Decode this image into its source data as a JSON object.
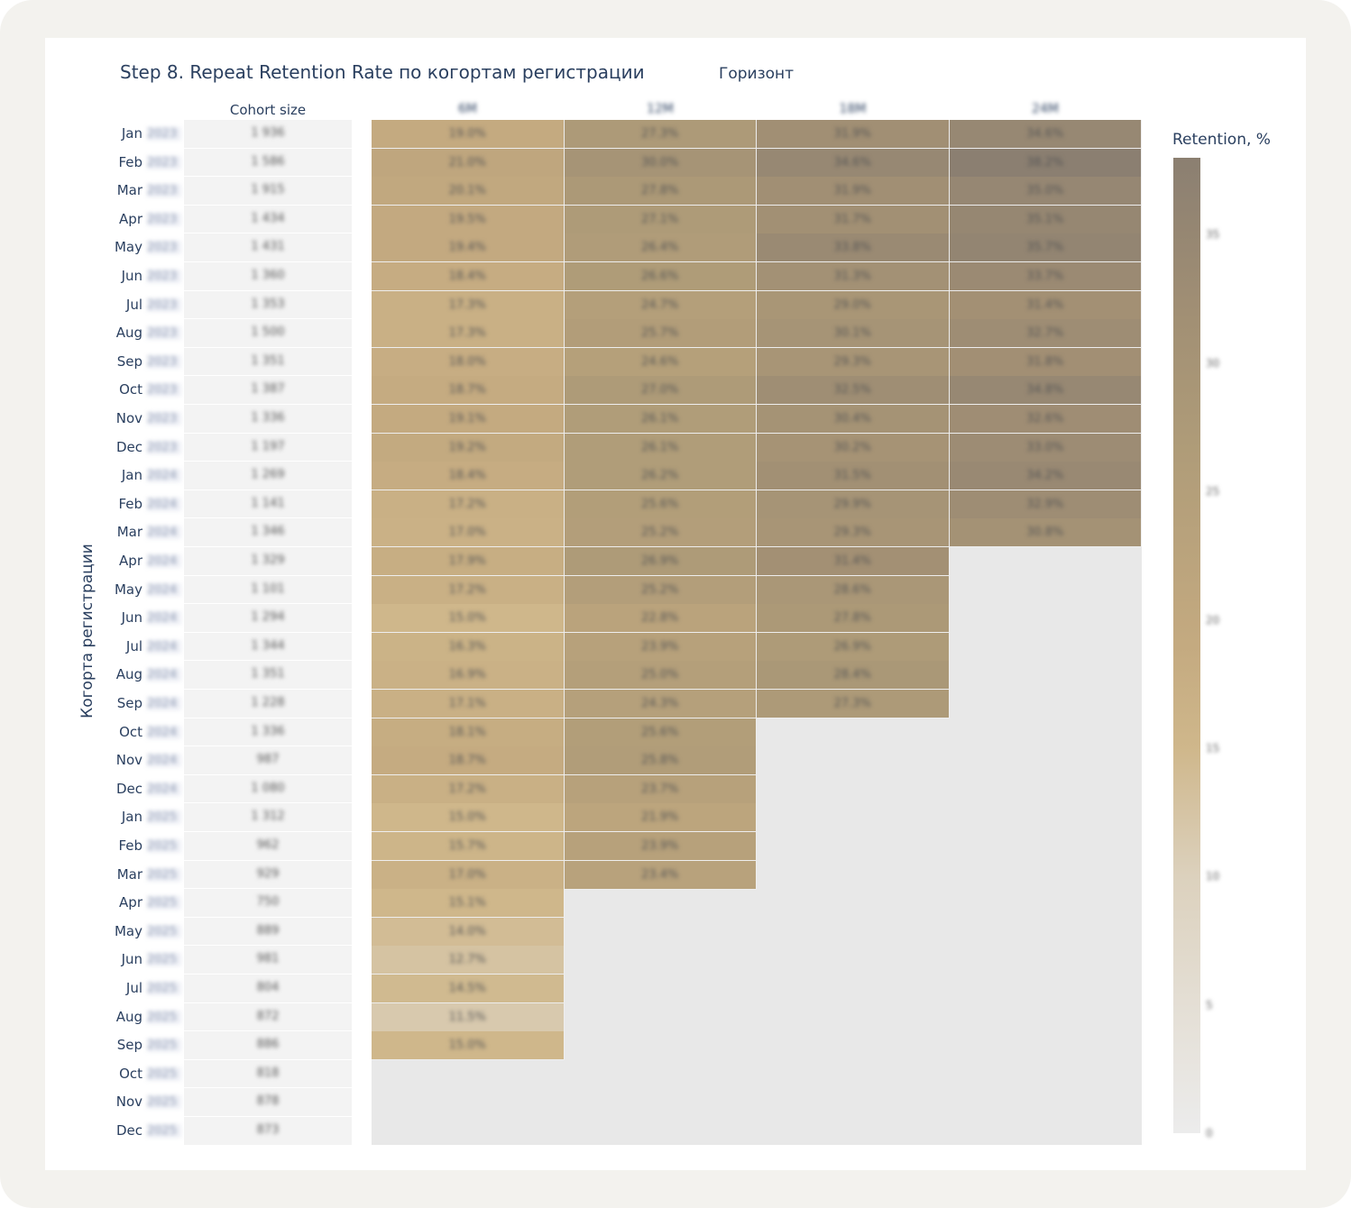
{
  "chart_data": {
    "type": "heatmap",
    "title": "Step 8. Repeat Retention Rate по когортам регистрации",
    "control_label": "Горизонт",
    "ylabel": "Когорта регистрации",
    "size_header": "Cohort size",
    "columns": [
      "6M",
      "12M",
      "18M",
      "24M"
    ],
    "colorbar": {
      "title": "Retention, %",
      "ticks": [
        0,
        5,
        10,
        15,
        20,
        25,
        30,
        35
      ],
      "range": [
        0,
        38
      ]
    },
    "colorscale": [
      [
        0,
        "#ececec"
      ],
      [
        10,
        "#dcd1bd"
      ],
      [
        15,
        "#cfb78b"
      ],
      [
        19,
        "#c4aa80"
      ],
      [
        27,
        "#ae9b78"
      ],
      [
        32,
        "#a18f74"
      ],
      [
        38,
        "#8b7f71"
      ]
    ],
    "rows": [
      {
        "month": "Jan",
        "year": "2023",
        "size": "1 936",
        "values": [
          19.0,
          27.3,
          31.9,
          34.6
        ]
      },
      {
        "month": "Feb",
        "year": "2023",
        "size": "1 586",
        "values": [
          21.0,
          30.0,
          34.6,
          38.2
        ]
      },
      {
        "month": "Mar",
        "year": "2023",
        "size": "1 915",
        "values": [
          20.1,
          27.8,
          31.9,
          35.0
        ]
      },
      {
        "month": "Apr",
        "year": "2023",
        "size": "1 434",
        "values": [
          19.5,
          27.1,
          31.7,
          35.1
        ]
      },
      {
        "month": "May",
        "year": "2023",
        "size": "1 431",
        "values": [
          19.4,
          26.4,
          33.8,
          35.7
        ]
      },
      {
        "month": "Jun",
        "year": "2023",
        "size": "1 360",
        "values": [
          18.4,
          26.6,
          31.3,
          33.7
        ]
      },
      {
        "month": "Jul",
        "year": "2023",
        "size": "1 353",
        "values": [
          17.3,
          24.7,
          29.0,
          31.4
        ]
      },
      {
        "month": "Aug",
        "year": "2023",
        "size": "1 500",
        "values": [
          17.3,
          25.7,
          30.1,
          32.7
        ]
      },
      {
        "month": "Sep",
        "year": "2023",
        "size": "1 351",
        "values": [
          18.0,
          24.6,
          29.3,
          31.8
        ]
      },
      {
        "month": "Oct",
        "year": "2023",
        "size": "1 387",
        "values": [
          18.7,
          27.0,
          32.5,
          34.8
        ]
      },
      {
        "month": "Nov",
        "year": "2023",
        "size": "1 336",
        "values": [
          19.1,
          26.1,
          30.4,
          32.6
        ]
      },
      {
        "month": "Dec",
        "year": "2023",
        "size": "1 197",
        "values": [
          19.2,
          26.1,
          30.2,
          33.0
        ]
      },
      {
        "month": "Jan",
        "year": "2024",
        "size": "1 269",
        "values": [
          18.4,
          26.2,
          31.5,
          34.2
        ]
      },
      {
        "month": "Feb",
        "year": "2024",
        "size": "1 141",
        "values": [
          17.2,
          25.6,
          29.9,
          32.9
        ]
      },
      {
        "month": "Mar",
        "year": "2024",
        "size": "1 346",
        "values": [
          17.0,
          25.2,
          29.3,
          30.8
        ]
      },
      {
        "month": "Apr",
        "year": "2024",
        "size": "1 329",
        "values": [
          17.9,
          26.9,
          31.4,
          null
        ]
      },
      {
        "month": "May",
        "year": "2024",
        "size": "1 101",
        "values": [
          17.2,
          25.2,
          28.6,
          null
        ]
      },
      {
        "month": "Jun",
        "year": "2024",
        "size": "1 294",
        "values": [
          15.0,
          22.8,
          27.8,
          null
        ]
      },
      {
        "month": "Jul",
        "year": "2024",
        "size": "1 344",
        "values": [
          16.3,
          23.9,
          26.9,
          null
        ]
      },
      {
        "month": "Aug",
        "year": "2024",
        "size": "1 351",
        "values": [
          16.9,
          25.0,
          28.4,
          null
        ]
      },
      {
        "month": "Sep",
        "year": "2024",
        "size": "1 228",
        "values": [
          17.1,
          24.3,
          27.3,
          null
        ]
      },
      {
        "month": "Oct",
        "year": "2024",
        "size": "1 336",
        "values": [
          18.1,
          25.6,
          null,
          null
        ]
      },
      {
        "month": "Nov",
        "year": "2024",
        "size": "987",
        "values": [
          18.7,
          25.8,
          null,
          null
        ]
      },
      {
        "month": "Dec",
        "year": "2024",
        "size": "1 080",
        "values": [
          17.2,
          23.7,
          null,
          null
        ]
      },
      {
        "month": "Jan",
        "year": "2025",
        "size": "1 312",
        "values": [
          15.0,
          21.9,
          null,
          null
        ]
      },
      {
        "month": "Feb",
        "year": "2025",
        "size": "962",
        "values": [
          15.7,
          23.9,
          null,
          null
        ]
      },
      {
        "month": "Mar",
        "year": "2025",
        "size": "929",
        "values": [
          17.0,
          23.4,
          null,
          null
        ]
      },
      {
        "month": "Apr",
        "year": "2025",
        "size": "750",
        "values": [
          15.1,
          null,
          null,
          null
        ]
      },
      {
        "month": "May",
        "year": "2025",
        "size": "889",
        "values": [
          14.0,
          null,
          null,
          null
        ]
      },
      {
        "month": "Jun",
        "year": "2025",
        "size": "981",
        "values": [
          12.7,
          null,
          null,
          null
        ]
      },
      {
        "month": "Jul",
        "year": "2025",
        "size": "804",
        "values": [
          14.5,
          null,
          null,
          null
        ]
      },
      {
        "month": "Aug",
        "year": "2025",
        "size": "872",
        "values": [
          11.5,
          null,
          null,
          null
        ]
      },
      {
        "month": "Sep",
        "year": "2025",
        "size": "886",
        "values": [
          15.0,
          null,
          null,
          null
        ]
      },
      {
        "month": "Oct",
        "year": "2025",
        "size": "818",
        "values": [
          null,
          null,
          null,
          null
        ]
      },
      {
        "month": "Nov",
        "year": "2025",
        "size": "878",
        "values": [
          null,
          null,
          null,
          null
        ]
      },
      {
        "month": "Dec",
        "year": "2025",
        "size": "873",
        "values": [
          null,
          null,
          null,
          null
        ]
      }
    ]
  }
}
